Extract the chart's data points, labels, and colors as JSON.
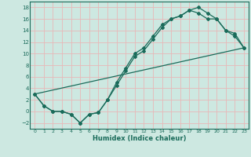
{
  "title": "",
  "xlabel": "Humidex (Indice chaleur)",
  "bg_color": "#cde8e1",
  "grid_color": "#e8b8b8",
  "line_color": "#1a6b5a",
  "xlim": [
    -0.5,
    23.5
  ],
  "ylim": [
    -3,
    19
  ],
  "xticks": [
    0,
    1,
    2,
    3,
    4,
    5,
    6,
    7,
    8,
    9,
    10,
    11,
    12,
    13,
    14,
    15,
    16,
    17,
    18,
    19,
    20,
    21,
    22,
    23
  ],
  "yticks": [
    -2,
    0,
    2,
    4,
    6,
    8,
    10,
    12,
    14,
    16,
    18
  ],
  "line1_x": [
    0,
    1,
    2,
    3,
    4,
    5,
    6,
    7,
    8,
    9,
    10,
    11,
    12,
    13,
    14,
    15,
    16,
    17,
    18,
    19,
    20,
    21,
    22,
    23
  ],
  "line1_y": [
    3,
    1,
    0,
    0,
    -0.5,
    -2,
    -0.5,
    -0.2,
    2,
    4.5,
    7,
    9.5,
    10.5,
    12.5,
    14.5,
    16,
    16.5,
    17.5,
    18,
    17,
    16,
    14,
    13.5,
    11
  ],
  "line2_x": [
    0,
    1,
    2,
    3,
    4,
    5,
    6,
    7,
    8,
    9,
    10,
    11,
    12,
    13,
    14,
    15,
    16,
    17,
    18,
    19,
    20,
    21,
    22,
    23
  ],
  "line2_y": [
    3,
    1,
    0,
    0,
    -0.5,
    -2,
    -0.5,
    -0.2,
    2,
    5,
    7.5,
    10,
    11,
    13,
    15,
    16,
    16.5,
    17.5,
    17,
    16,
    16,
    14,
    13,
    11
  ],
  "line3_x": [
    0,
    23
  ],
  "line3_y": [
    3,
    11
  ]
}
